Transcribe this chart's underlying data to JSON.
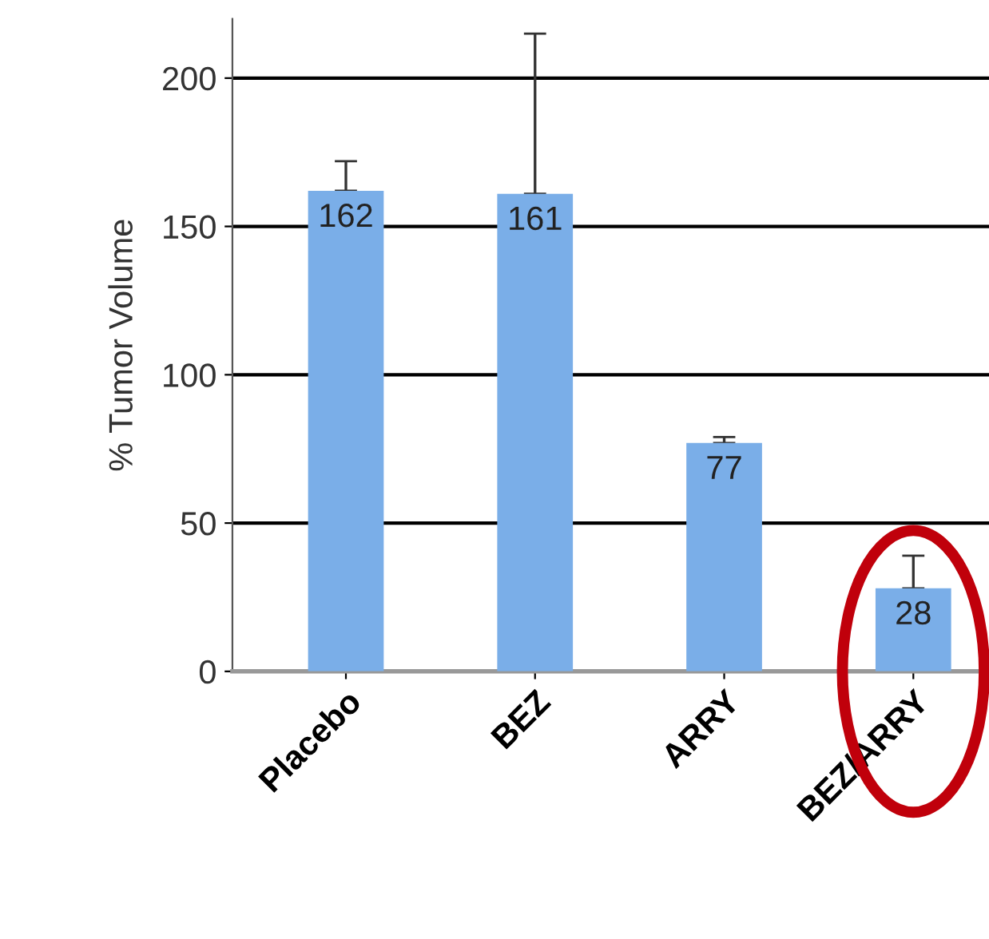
{
  "chart_data": {
    "type": "bar",
    "ylabel": "% Tumor Volume",
    "categories": [
      "Placebo",
      "BEZ",
      "ARRY",
      "BEZ/ARRY"
    ],
    "values": [
      162,
      161,
      77,
      28
    ],
    "errors": [
      [
        162,
        172
      ],
      [
        161,
        215
      ],
      [
        77,
        79
      ],
      [
        28,
        39
      ]
    ],
    "color": "#7aaee8",
    "ylim": [
      0,
      220
    ],
    "yticks": [
      0,
      50,
      100,
      150,
      200
    ],
    "grid": "y",
    "data_labels": true
  }
}
